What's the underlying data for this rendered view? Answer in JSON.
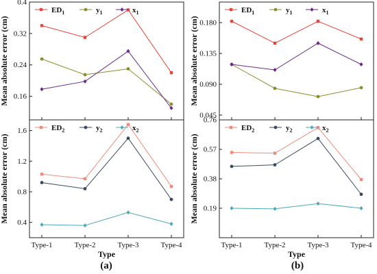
{
  "chart_data": [
    {
      "type": "line",
      "panel": "top-left",
      "x_categories": [
        "",
        "",
        "",
        ""
      ],
      "ylabel": "Mean absolute error (cm)",
      "ylim": [
        0.1,
        0.4
      ],
      "yticks": [
        0.16,
        0.24,
        0.32,
        0.4
      ],
      "grid": false,
      "legend_position": "top",
      "series": [
        {
          "name": "ED",
          "sub": "1",
          "color": "#e8443a",
          "marker": "square",
          "values": [
            0.34,
            0.31,
            0.38,
            0.22
          ]
        },
        {
          "name": "y",
          "sub": "1",
          "color": "#8a8f2a",
          "marker": "circle",
          "values": [
            0.255,
            0.215,
            0.23,
            0.14
          ]
        },
        {
          "name": "x",
          "sub": "1",
          "color": "#6a2a8a",
          "marker": "diamond",
          "values": [
            0.178,
            0.198,
            0.275,
            0.13
          ]
        }
      ]
    },
    {
      "type": "line",
      "panel": "top-right",
      "x_categories": [
        "",
        "",
        "",
        ""
      ],
      "ylabel": "Mean absolute error (cm)",
      "ylim": [
        0.038,
        0.21
      ],
      "yticks": [
        0.045,
        0.09,
        0.135,
        0.18
      ],
      "tick_labels": [
        "0.045",
        "0.090",
        "0.135",
        "0.180"
      ],
      "grid": false,
      "legend_position": "top",
      "series": [
        {
          "name": "ED",
          "sub": "1",
          "color": "#e8443a",
          "marker": "square",
          "values": [
            0.182,
            0.15,
            0.182,
            0.156
          ]
        },
        {
          "name": "y",
          "sub": "1",
          "color": "#8a8f2a",
          "marker": "circle",
          "values": [
            0.119,
            0.084,
            0.072,
            0.085
          ]
        },
        {
          "name": "x",
          "sub": "1",
          "color": "#6a2a8a",
          "marker": "diamond",
          "values": [
            0.119,
            0.111,
            0.15,
            0.119
          ]
        }
      ]
    },
    {
      "type": "line",
      "panel": "bottom-left",
      "x_categories": [
        "Type-1",
        "Type-2",
        "Type-3",
        "Type-4"
      ],
      "xlabel": "Type",
      "ylabel": "Mean absolute error (cm)",
      "ylim": [
        0.2,
        1.74
      ],
      "yticks": [
        0.4,
        0.8,
        1.2,
        1.6
      ],
      "grid": false,
      "legend_position": "top",
      "series": [
        {
          "name": "ED",
          "sub": "2",
          "color": "#f08a78",
          "marker": "square",
          "values": [
            1.03,
            0.97,
            1.68,
            0.87
          ]
        },
        {
          "name": "y",
          "sub": "2",
          "color": "#3a4a5e",
          "marker": "circle",
          "values": [
            0.92,
            0.84,
            1.5,
            0.7
          ]
        },
        {
          "name": "x",
          "sub": "2",
          "color": "#4aa8b8",
          "marker": "diamond",
          "values": [
            0.37,
            0.36,
            0.53,
            0.38
          ]
        }
      ]
    },
    {
      "type": "line",
      "panel": "bottom-right",
      "x_categories": [
        "Type-1",
        "Type-2",
        "Type-3",
        "Type-4"
      ],
      "xlabel": "Type",
      "ylabel": "Mean absolute error (cm)",
      "ylim": [
        0.0,
        0.76
      ],
      "yticks": [
        0.19,
        0.38,
        0.57,
        0.76
      ],
      "grid": false,
      "legend_position": "top",
      "series": [
        {
          "name": "ED",
          "sub": "2",
          "color": "#f08a78",
          "marker": "square",
          "values": [
            0.55,
            0.545,
            0.71,
            0.375
          ]
        },
        {
          "name": "y",
          "sub": "2",
          "color": "#3a4a5e",
          "marker": "circle",
          "values": [
            0.46,
            0.47,
            0.64,
            0.28
          ]
        },
        {
          "name": "x",
          "sub": "2",
          "color": "#4aa8b8",
          "marker": "diamond",
          "values": [
            0.19,
            0.186,
            0.22,
            0.19
          ]
        }
      ]
    }
  ],
  "panel_labels": [
    "(a)",
    "(b)"
  ]
}
